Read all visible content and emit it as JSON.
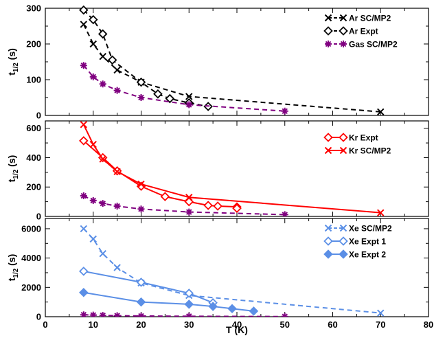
{
  "chart_data": [
    {
      "type": "line",
      "ylabel": "t1/2 (s)",
      "ylim": [
        0,
        300
      ],
      "yticks": [
        0,
        100,
        200,
        300
      ],
      "xlim": [
        0,
        80
      ],
      "legend_position": "top-right",
      "series": [
        {
          "name": "Ar SC/MP2",
          "color": "#000000",
          "dash": true,
          "marker": "x",
          "x": [
            8,
            10,
            12,
            15,
            20,
            30,
            70
          ],
          "y": [
            255,
            200,
            165,
            127,
            93,
            53,
            10
          ]
        },
        {
          "name": "Ar Expt",
          "color": "#000000",
          "dash": true,
          "marker": "diamond-open",
          "x": [
            8,
            10,
            12,
            14,
            20,
            23.5,
            26,
            30,
            34
          ],
          "y": [
            295,
            268,
            228,
            155,
            93,
            60,
            47,
            35,
            25
          ]
        },
        {
          "name": "Gas SC/MP2",
          "color": "#800080",
          "dash": true,
          "marker": "asterisk",
          "x": [
            8,
            10,
            12,
            15,
            20,
            30,
            50
          ],
          "y": [
            140,
            108,
            88,
            70,
            50,
            30,
            12
          ]
        }
      ]
    },
    {
      "type": "line",
      "ylabel": "t1/2 (s)",
      "ylim": [
        0,
        650
      ],
      "yticks": [
        0,
        200,
        400,
        600
      ],
      "xlim": [
        0,
        80
      ],
      "legend_position": "top-right",
      "series": [
        {
          "name": "Kr Expt",
          "color": "#ff0000",
          "dash": false,
          "marker": "diamond-open",
          "x": [
            8,
            12,
            15,
            20,
            25,
            30,
            34,
            36,
            40,
            40
          ],
          "y": [
            515,
            400,
            310,
            205,
            135,
            100,
            75,
            70,
            65,
            55
          ]
        },
        {
          "name": "Kr SC/MP2",
          "color": "#ff0000",
          "dash": false,
          "marker": "x",
          "x": [
            8,
            10,
            12,
            15,
            20,
            30,
            70
          ],
          "y": [
            625,
            490,
            390,
            305,
            220,
            130,
            25
          ]
        },
        {
          "name": "",
          "color": "#800080",
          "dash": true,
          "marker": "asterisk",
          "in_legend": false,
          "x": [
            8,
            10,
            12,
            15,
            20,
            30,
            50
          ],
          "y": [
            140,
            108,
            88,
            70,
            50,
            30,
            12
          ]
        }
      ]
    },
    {
      "type": "line",
      "xlabel": "T (K)",
      "ylabel": "t1/2 (s)",
      "ylim": [
        0,
        6700
      ],
      "yticks": [
        0,
        2000,
        4000,
        6000
      ],
      "xlim": [
        0,
        80
      ],
      "xticks": [
        0,
        10,
        20,
        30,
        40,
        50,
        60,
        70,
        80
      ],
      "legend_position": "top-right",
      "series": [
        {
          "name": "Xe SC/MP2",
          "color": "#5b8fe6",
          "dash": true,
          "marker": "x",
          "x": [
            8,
            10,
            12,
            15,
            20,
            30,
            70
          ],
          "y": [
            6000,
            5300,
            4300,
            3350,
            2300,
            1450,
            250
          ]
        },
        {
          "name": "Xe Expt 1",
          "color": "#5b8fe6",
          "dash": false,
          "marker": "diamond-open",
          "x": [
            8,
            20,
            30,
            35
          ],
          "y": [
            3100,
            2350,
            1600,
            950
          ]
        },
        {
          "name": "Xe Expt 2",
          "color": "#5b8fe6",
          "dash": false,
          "marker": "diamond-filled",
          "x": [
            8,
            20,
            30,
            35,
            39,
            43.5
          ],
          "y": [
            1650,
            1000,
            850,
            700,
            550,
            380
          ]
        },
        {
          "name": "",
          "color": "#800080",
          "dash": true,
          "marker": "asterisk",
          "in_legend": false,
          "x": [
            8,
            10,
            12,
            15,
            20,
            30,
            50
          ],
          "y": [
            130,
            110,
            90,
            70,
            50,
            30,
            12
          ]
        }
      ]
    }
  ]
}
